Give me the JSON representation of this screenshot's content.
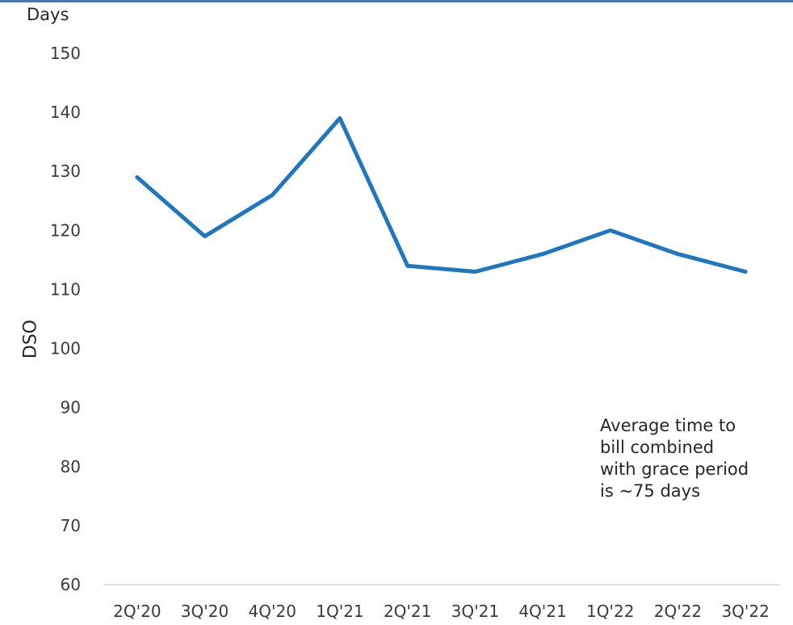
{
  "chart_data": {
    "type": "line",
    "unit_label": "Days",
    "ylabel": "DSO",
    "xlabel": "",
    "categories": [
      "2Q'20",
      "3Q'20",
      "4Q'20",
      "1Q'21",
      "2Q'21",
      "3Q'21",
      "4Q'21",
      "1Q'22",
      "2Q'22",
      "3Q'22"
    ],
    "series": [
      {
        "values": [
          129,
          119,
          126,
          139,
          114,
          113,
          116,
          120,
          116,
          113
        ]
      }
    ],
    "ylim": [
      60,
      150
    ],
    "yticks": [
      60,
      70,
      80,
      90,
      100,
      110,
      120,
      130,
      140,
      150
    ],
    "grid": false,
    "line_color": "#1f77c0",
    "axis_color": "#d0d0d0",
    "annotation": {
      "lines": [
        "Average time to",
        "bill combined",
        "with grace period",
        "is ~75 days"
      ]
    }
  }
}
